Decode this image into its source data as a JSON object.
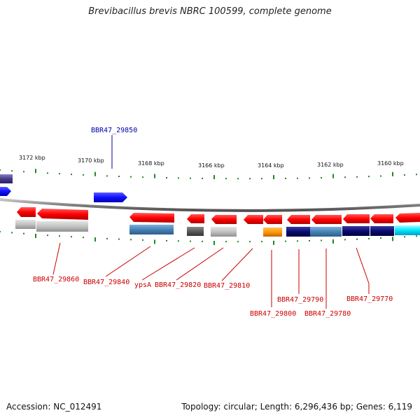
{
  "title": "Brevibacillus brevis NBRC 100599, complete genome",
  "accession": "Accession: NC_012491",
  "summary": "Topology: circular; Length: 6,296,436 bp; Genes: 6,119",
  "ticks": [
    "3172 kbp",
    "3170 kbp",
    "3168 kbp",
    "3166 kbp",
    "3164 kbp",
    "3162 kbp",
    "3160 kbp"
  ],
  "gene_labels": {
    "forward": [
      "BBR47_29850"
    ],
    "reverse": [
      "BBR47_29860",
      "BBR47_29840",
      "ypsA",
      "BBR47_29820",
      "BBR47_29810",
      "BBR47_29800",
      "BBR47_29790",
      "BBR47_29780",
      "BBR47_29770"
    ]
  },
  "colors": {
    "forward_gene": "#1a1aff",
    "reverse_gene": "#ff0000",
    "forward_label": "#0000aa",
    "reverse_label": "#cc0000",
    "backbone": "#808080",
    "tick": "#228822"
  }
}
